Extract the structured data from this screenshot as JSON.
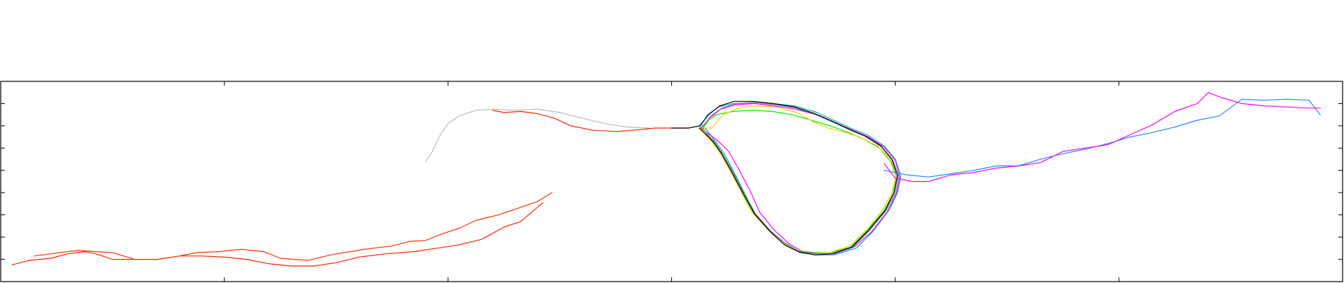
{
  "chart_data": {
    "type": "line",
    "title": "",
    "xlabel": "",
    "ylabel": "",
    "xlim": [
      0,
      1200
    ],
    "ylim": [
      0,
      180
    ],
    "grid": false,
    "legend": "none",
    "x_ticks": [
      200,
      400,
      600,
      800,
      1000
    ],
    "y_ticks": [
      20,
      40,
      60,
      80,
      100,
      120,
      140,
      160
    ],
    "series": [
      {
        "color": "#ff2200",
        "x": [
          10,
          25,
          45,
          60,
          75,
          85,
          100,
          120,
          140,
          160,
          180,
          200,
          220,
          240,
          260,
          280,
          300,
          320,
          345,
          370,
          390,
          410,
          430,
          450,
          465,
          485
        ],
        "y": [
          15,
          19,
          21,
          25,
          27,
          25,
          20,
          20,
          20,
          23,
          23,
          22,
          20,
          16,
          14,
          14,
          17,
          22,
          25,
          27,
          30,
          33,
          38,
          49,
          54,
          71
        ]
      },
      {
        "color": "#ff3300",
        "x": [
          30,
          45,
          60,
          70,
          85,
          100,
          120,
          140,
          160,
          175,
          195,
          215,
          235,
          250,
          275,
          295,
          325,
          350,
          365,
          380,
          395,
          410,
          425,
          445,
          460,
          480,
          493
        ],
        "y": [
          23,
          25,
          27,
          28,
          27,
          26,
          20,
          20,
          23,
          26,
          27,
          29,
          27,
          21,
          19,
          24,
          29,
          32,
          36,
          37,
          43,
          48,
          55,
          60,
          65,
          72,
          80
        ]
      },
      {
        "color": "#bbbbbb",
        "x": [
          380,
          385,
          392,
          400,
          410,
          425,
          440,
          460,
          480,
          500,
          520,
          540,
          560,
          580
        ],
        "y": [
          108,
          115,
          130,
          142,
          149,
          154,
          155,
          154,
          155,
          152,
          147,
          142,
          139,
          138
        ]
      },
      {
        "color": "#ff2200",
        "x": [
          440,
          450,
          465,
          480,
          495,
          510,
          530,
          550,
          565,
          575,
          585,
          600,
          615
        ],
        "y": [
          154,
          152,
          153,
          151,
          147,
          140,
          136,
          135,
          136,
          137,
          138,
          138,
          138
        ]
      },
      {
        "color": "#00aacc",
        "x": [
          625,
          632,
          642,
          655,
          672,
          690,
          710,
          730,
          745,
          760,
          775,
          790,
          800,
          805,
          802,
          795,
          780,
          765,
          745,
          730,
          715,
          703,
          690,
          675,
          665,
          655,
          647,
          640,
          630
        ],
        "y": [
          138,
          150,
          157,
          160,
          161,
          160,
          158,
          152,
          145,
          138,
          132,
          122,
          110,
          95,
          80,
          65,
          45,
          30,
          24,
          24,
          26,
          33,
          44,
          60,
          80,
          100,
          115,
          125,
          138
        ]
      },
      {
        "color": "#00ee00",
        "x": [
          628,
          633,
          640,
          655,
          672,
          690,
          708,
          725,
          742,
          758,
          772,
          786,
          796,
          801,
          798,
          790,
          775,
          760,
          742,
          728,
          713,
          701,
          688,
          673,
          662,
          652,
          643,
          636,
          628
        ],
        "y": [
          138,
          145,
          150,
          153,
          154,
          153,
          150,
          145,
          140,
          134,
          128,
          120,
          108,
          94,
          79,
          64,
          46,
          31,
          26,
          26,
          28,
          35,
          46,
          62,
          82,
          101,
          116,
          126,
          138
        ]
      },
      {
        "color": "#ff00ff",
        "x": [
          626,
          634,
          644,
          657,
          674,
          692,
          711,
          729,
          746,
          762,
          776,
          790,
          800,
          804,
          801,
          793,
          779,
          763,
          746,
          731,
          717,
          705,
          692,
          679,
          670,
          660,
          651,
          642,
          626
        ],
        "y": [
          138,
          147,
          155,
          159,
          160,
          158,
          155,
          150,
          143,
          136,
          130,
          121,
          109,
          94,
          79,
          63,
          45,
          31,
          25,
          25,
          27,
          34,
          46,
          62,
          82,
          101,
          117,
          126,
          138
        ]
      },
      {
        "color": "#ffcc00",
        "x": [
          624,
          636,
          646,
          660,
          676,
          694,
          712,
          728,
          740,
          752,
          768,
          784,
          796,
          801,
          797,
          789,
          775,
          759,
          741,
          727,
          712,
          700,
          687,
          671,
          661,
          651,
          642,
          634,
          624
        ],
        "y": [
          138,
          138,
          150,
          156,
          158,
          157,
          152,
          143,
          138,
          135,
          130,
          122,
          110,
          96,
          80,
          65,
          47,
          32,
          26,
          25,
          28,
          34,
          46,
          63,
          83,
          102,
          118,
          128,
          138
        ]
      },
      {
        "color": "#888888",
        "x": [
          627,
          635,
          645,
          658,
          675,
          693,
          711,
          729,
          745,
          760,
          774,
          788,
          798,
          803,
          800,
          792,
          777,
          762,
          744,
          729,
          714,
          702,
          689,
          675,
          664,
          654,
          645,
          638,
          627
        ],
        "y": [
          138,
          149,
          156,
          160,
          161,
          159,
          156,
          150,
          143,
          136,
          130,
          121,
          109,
          95,
          79,
          64,
          46,
          31,
          25,
          25,
          27,
          34,
          45,
          61,
          81,
          100,
          116,
          126,
          138
        ]
      },
      {
        "color": "#000000",
        "x": [
          600,
          615,
          625,
          633,
          643,
          656,
          673,
          691,
          710,
          728,
          744,
          759,
          773,
          787,
          797,
          802,
          799,
          791,
          776,
          761,
          743,
          728,
          713,
          701,
          688,
          674,
          663,
          653,
          644,
          637,
          625
        ],
        "y": [
          138,
          138,
          140,
          150,
          158,
          162,
          162,
          160,
          157,
          151,
          144,
          137,
          131,
          122,
          110,
          95,
          80,
          64,
          46,
          31,
          25,
          24,
          27,
          33,
          45,
          61,
          81,
          100,
          116,
          126,
          138
        ]
      },
      {
        "color": "#2288ff",
        "x": [
          790,
          810,
          830,
          850,
          870,
          890,
          910,
          930,
          950,
          970,
          990,
          1010,
          1030,
          1050,
          1070,
          1090,
          1110,
          1130,
          1150,
          1170,
          1180
        ],
        "y": [
          100,
          96,
          94,
          97,
          100,
          104,
          104,
          110,
          115,
          119,
          124,
          130,
          134,
          139,
          145,
          149,
          164,
          163,
          164,
          163,
          150
        ]
      },
      {
        "color": "#ff00ff",
        "x": [
          790,
          800,
          815,
          830,
          850,
          870,
          890,
          910,
          930,
          950,
          970,
          990,
          1010,
          1030,
          1050,
          1070,
          1080,
          1090,
          1110,
          1130,
          1150,
          1170,
          1180
        ],
        "y": [
          106,
          93,
          90,
          90,
          96,
          98,
          102,
          104,
          107,
          117,
          120,
          123,
          132,
          141,
          153,
          160,
          170,
          166,
          160,
          158,
          157,
          156,
          156
        ]
      }
    ]
  }
}
